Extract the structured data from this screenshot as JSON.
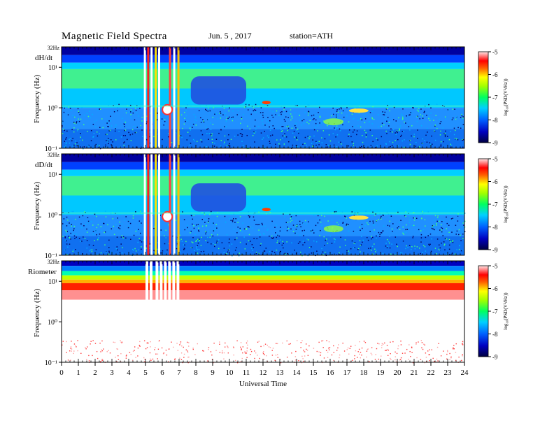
{
  "header": {
    "title": "Magnetic  Field  Spectra",
    "date": "Jun.  5  , 2017",
    "station": "station=ATH"
  },
  "colors": {
    "colormap": [
      "#000080",
      "#0000ff",
      "#00a0ff",
      "#00ff80",
      "#80ff00",
      "#ffff00",
      "#ff8000",
      "#ff0000",
      "#ffc0c0",
      "#ffffff"
    ]
  },
  "chart_data": [
    {
      "type": "heatmap",
      "panel_label": "dH/dt",
      "ylabel": "Frequency  (Hz)",
      "top_label": "32Hz",
      "yticks": [
        "10¹",
        "10⁰",
        "10⁻¹"
      ],
      "ytick_values": [
        10,
        1,
        0.1
      ],
      "x_range": [
        0,
        24
      ],
      "y_range": [
        0.1,
        32
      ],
      "y_scale": "log",
      "colorbar": {
        "label": "log₁₀(PSD(V²/Hz))",
        "ticks": [
          "-5",
          "-6",
          "-7",
          "-8",
          "-9"
        ],
        "range": [
          -9,
          -5
        ]
      }
    },
    {
      "type": "heatmap",
      "panel_label": "dD/dt",
      "ylabel": "Frequency  (Hz)",
      "top_label": "32Hz",
      "yticks": [
        "10¹",
        "10⁰",
        "10⁻¹"
      ],
      "ytick_values": [
        10,
        1,
        0.1
      ],
      "x_range": [
        0,
        24
      ],
      "y_range": [
        0.1,
        32
      ],
      "y_scale": "log",
      "colorbar": {
        "label": "log₁₀(PSD(V²/Hz))",
        "ticks": [
          "-5",
          "-6",
          "-7",
          "-8",
          "-9"
        ],
        "range": [
          -9,
          -5
        ]
      }
    },
    {
      "type": "heatmap",
      "panel_label": "Riometer",
      "ylabel": "Frequency  (Hz)",
      "top_label": "32Hz",
      "yticks": [
        "10¹",
        "10⁰",
        "10⁻¹"
      ],
      "ytick_values": [
        10,
        1,
        0.1
      ],
      "x_range": [
        0,
        24
      ],
      "y_range": [
        0.1,
        32
      ],
      "y_scale": "log",
      "xlabel": "Universal  Time",
      "xticks": [
        "0",
        "1",
        "2",
        "3",
        "4",
        "5",
        "6",
        "7",
        "8",
        "9",
        "10",
        "11",
        "12",
        "13",
        "14",
        "15",
        "16",
        "17",
        "18",
        "19",
        "20",
        "21",
        "22",
        "23",
        "24"
      ],
      "colorbar": {
        "label": "log₁₀(PSD(V²/Hz))",
        "ticks": [
          "-5",
          "-6",
          "-7",
          "-8",
          "-9"
        ],
        "range": [
          -9,
          -5
        ]
      }
    }
  ]
}
